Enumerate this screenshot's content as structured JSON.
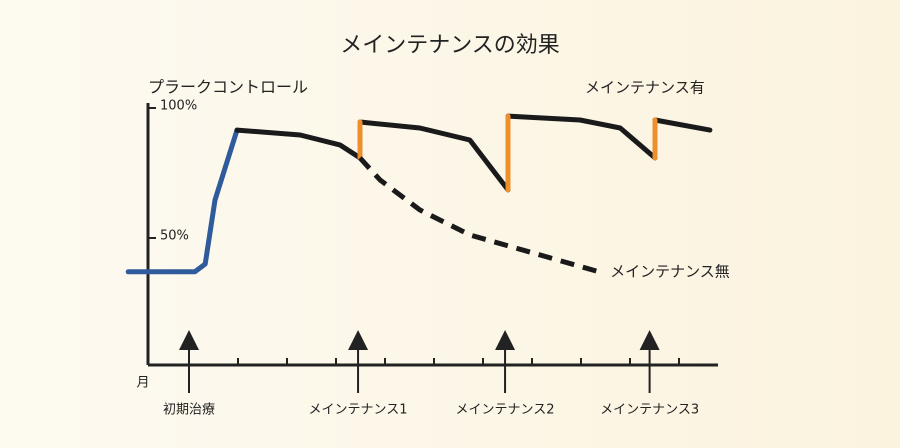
{
  "chart_data": {
    "type": "line",
    "title": "メインテナンスの効果",
    "y_label": "プラークコントロール",
    "x_label": "月",
    "xlim": [
      -0.3,
      12
    ],
    "ylim": [
      0,
      100
    ],
    "xticks": [
      1,
      2,
      3,
      4,
      5,
      6,
      7,
      8,
      9,
      10,
      11
    ],
    "yticks": [
      {
        "value": 50,
        "label": "50%"
      },
      {
        "value": 100,
        "label": "100%"
      }
    ],
    "series": [
      {
        "color": "#2f5b9c",
        "style": "solid",
        "x": [
          -0.24,
          1.12,
          1.33,
          1.53,
          1.98
        ],
        "values": [
          37,
          37,
          40,
          64.6,
          91.5
        ]
      },
      {
        "name": "メインテナンス有",
        "color": "#1a1a1a",
        "style": "solid",
        "x": [
          1.98,
          3.27,
          4.08,
          4.49,
          4.49,
          4.49,
          5.71,
          6.73,
          7.51,
          7.51,
          7.51,
          8.98,
          9.8,
          10.51,
          10.51,
          10.51,
          11.63
        ],
        "values": [
          91.5,
          89.6,
          85.8,
          80.8,
          null,
          94.6,
          92.3,
          87.7,
          68.5,
          null,
          96.9,
          95.4,
          92.3,
          80.8,
          null,
          95.4,
          91.5
        ]
      },
      {
        "color": "#ee8f2e",
        "style": "solid",
        "x": [
          4.49,
          4.49,
          4.49,
          7.51,
          7.51,
          7.51,
          10.51,
          10.51
        ],
        "values": [
          80.8,
          94.6,
          null,
          68.5,
          96.9,
          null,
          80.8,
          95.4
        ]
      },
      {
        "name": "メインテナンス無",
        "color": "#1a1a1a",
        "style": "dashed",
        "x": [
          4.49,
          4.9,
          5.71,
          6.73,
          8.16,
          9.39
        ],
        "values": [
          80.8,
          72.3,
          60.8,
          51.2,
          43.5,
          36.9
        ]
      }
    ],
    "events": [
      {
        "x": 1,
        "label": "初期治療"
      },
      {
        "x": 4.45,
        "label": "メインテナンス1"
      },
      {
        "x": 7.45,
        "label": "メインテナンス2"
      },
      {
        "x": 10.4,
        "label": "メインテナンス3"
      }
    ]
  }
}
